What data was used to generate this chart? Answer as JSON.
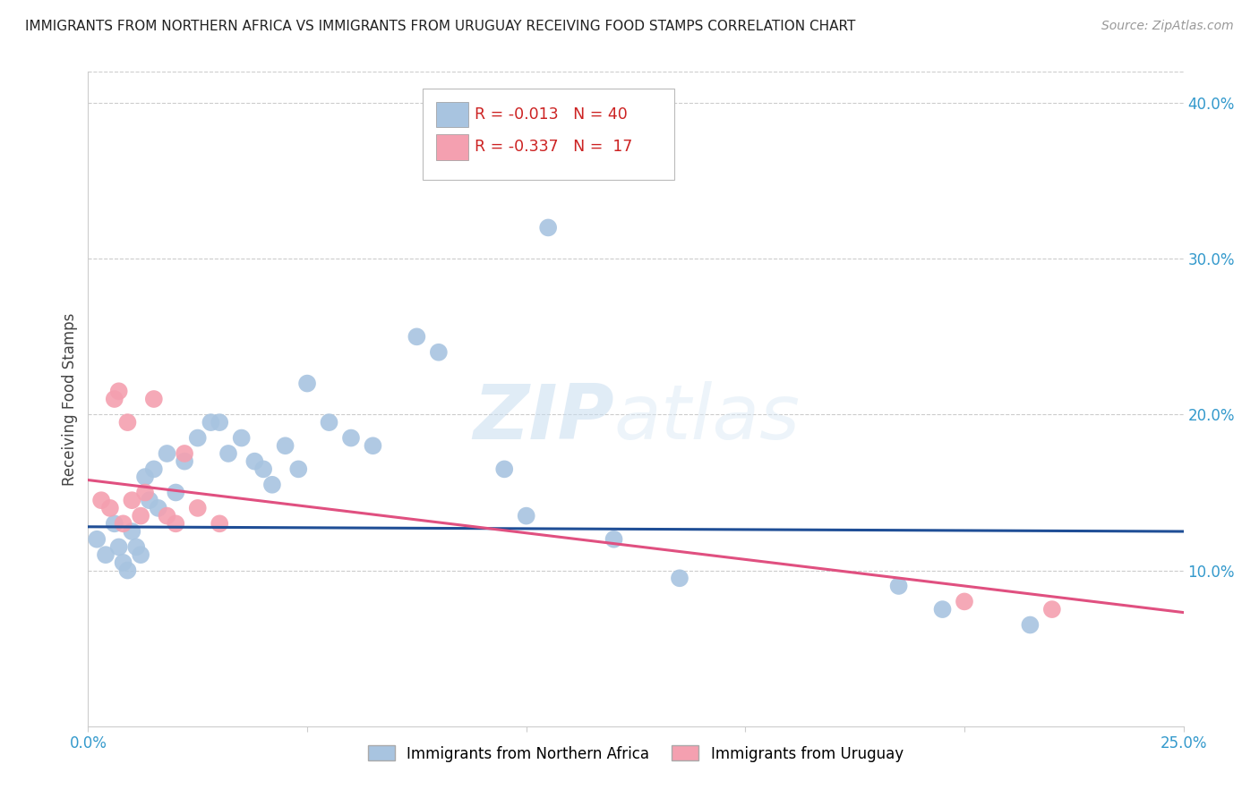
{
  "title": "IMMIGRANTS FROM NORTHERN AFRICA VS IMMIGRANTS FROM URUGUAY RECEIVING FOOD STAMPS CORRELATION CHART",
  "source": "Source: ZipAtlas.com",
  "ylabel": "Receiving Food Stamps",
  "xlim": [
    0.0,
    0.25
  ],
  "ylim": [
    0.0,
    0.42
  ],
  "xticks": [
    0.0,
    0.05,
    0.1,
    0.15,
    0.2,
    0.25
  ],
  "xticklabels": [
    "0.0%",
    "",
    "",
    "",
    "",
    "25.0%"
  ],
  "yticks_right": [
    0.1,
    0.2,
    0.3,
    0.4
  ],
  "yticklabels_right": [
    "10.0%",
    "20.0%",
    "30.0%",
    "40.0%"
  ],
  "blue_color": "#a8c4e0",
  "pink_color": "#f4a0b0",
  "blue_line_color": "#1f4e96",
  "pink_line_color": "#e05080",
  "legend_R_blue": "R = -0.013",
  "legend_N_blue": "N = 40",
  "legend_R_pink": "R = -0.337",
  "legend_N_pink": "N =  17",
  "watermark_zip": "ZIP",
  "watermark_atlas": "atlas",
  "blue_scatter_x": [
    0.002,
    0.004,
    0.006,
    0.007,
    0.008,
    0.009,
    0.01,
    0.011,
    0.012,
    0.013,
    0.014,
    0.015,
    0.016,
    0.018,
    0.02,
    0.022,
    0.025,
    0.028,
    0.03,
    0.032,
    0.035,
    0.038,
    0.04,
    0.042,
    0.045,
    0.048,
    0.05,
    0.055,
    0.06,
    0.065,
    0.075,
    0.08,
    0.095,
    0.1,
    0.105,
    0.12,
    0.135,
    0.185,
    0.195,
    0.215
  ],
  "blue_scatter_y": [
    0.12,
    0.11,
    0.13,
    0.115,
    0.105,
    0.1,
    0.125,
    0.115,
    0.11,
    0.16,
    0.145,
    0.165,
    0.14,
    0.175,
    0.15,
    0.17,
    0.185,
    0.195,
    0.195,
    0.175,
    0.185,
    0.17,
    0.165,
    0.155,
    0.18,
    0.165,
    0.22,
    0.195,
    0.185,
    0.18,
    0.25,
    0.24,
    0.165,
    0.135,
    0.32,
    0.12,
    0.095,
    0.09,
    0.075,
    0.065
  ],
  "pink_scatter_x": [
    0.003,
    0.005,
    0.006,
    0.007,
    0.008,
    0.009,
    0.01,
    0.012,
    0.013,
    0.015,
    0.018,
    0.02,
    0.022,
    0.025,
    0.03,
    0.2,
    0.22
  ],
  "pink_scatter_y": [
    0.145,
    0.14,
    0.21,
    0.215,
    0.13,
    0.195,
    0.145,
    0.135,
    0.15,
    0.21,
    0.135,
    0.13,
    0.175,
    0.14,
    0.13,
    0.08,
    0.075
  ],
  "blue_trend_x": [
    0.0,
    0.25
  ],
  "blue_trend_y": [
    0.128,
    0.125
  ],
  "pink_trend_x": [
    0.0,
    0.25
  ],
  "pink_trend_y": [
    0.158,
    0.073
  ],
  "background_color": "#ffffff",
  "grid_color": "#cccccc",
  "label_blue": "Immigrants from Northern Africa",
  "label_pink": "Immigrants from Uruguay"
}
